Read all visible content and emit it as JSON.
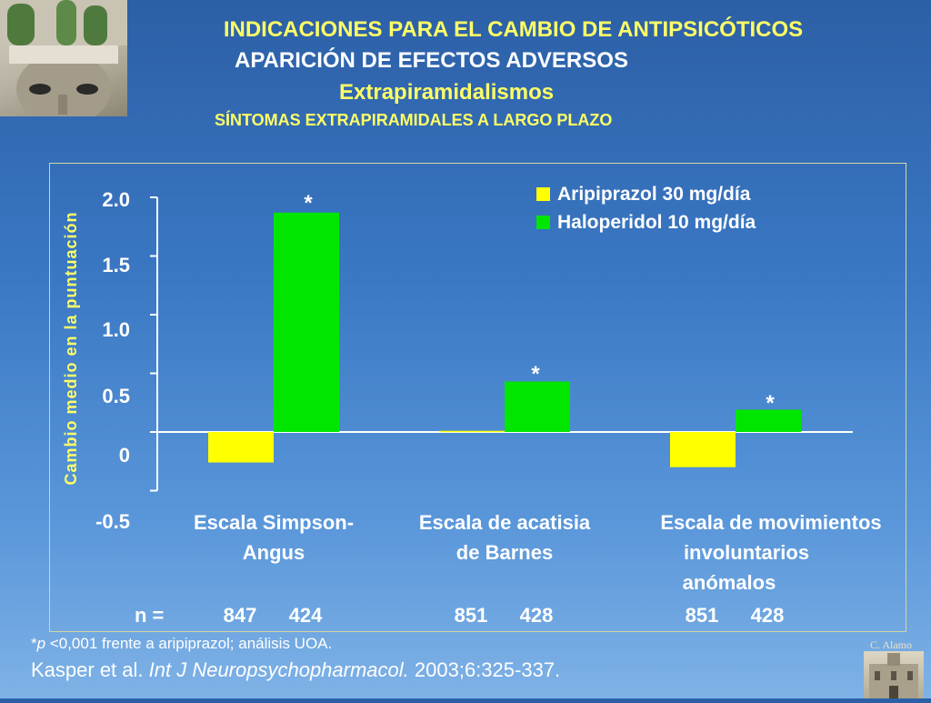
{
  "header": {
    "title_main": "INDICACIONES PARA EL CAMBIO DE ANTIPSICÓTICOS",
    "title_section": "APARICIÓN DE EFECTOS ADVERSOS",
    "title_topic": "Extrapiramidalismos",
    "title_subtopic": "SÍNTOMAS EXTRAPIRAMIDALES A LARGO PLAZO"
  },
  "chart_data": {
    "type": "bar",
    "ylabel": "Cambio medio en la puntuación",
    "ylim": [
      -0.5,
      2.0
    ],
    "yticks": [
      "2.0",
      "1.5",
      "1.0",
      "0.5",
      "0",
      "-0.5"
    ],
    "categories": [
      [
        "Escala Simpson-",
        "Angus"
      ],
      [
        "Escala de acatisia",
        "de Barnes"
      ],
      [
        "Escala de movimientos",
        "involuntarios",
        "anómalos"
      ]
    ],
    "series": [
      {
        "name": "Aripiprazol 30 mg/día",
        "color": "#ffff00",
        "values": [
          -0.26,
          0.01,
          -0.3
        ],
        "n": [
          "847",
          "851",
          "851"
        ]
      },
      {
        "name": "Haloperidol 10 mg/día",
        "color": "#00e600",
        "values": [
          1.87,
          0.43,
          0.19
        ],
        "n": [
          "424",
          "428",
          "428"
        ]
      }
    ],
    "significance_marker": "*",
    "n_label": "n ="
  },
  "footer": {
    "footnote_prefix": "*",
    "footnote_p": "p",
    "footnote_rest": " <0,001 frente a aripiprazol; análisis UOA.",
    "citation_authors": "Kasper et al. ",
    "citation_journal": "Int J Neuropsychopharmacol.",
    "citation_rest": " 2003;6:325-337.",
    "author_credit": "C. Alamo"
  }
}
